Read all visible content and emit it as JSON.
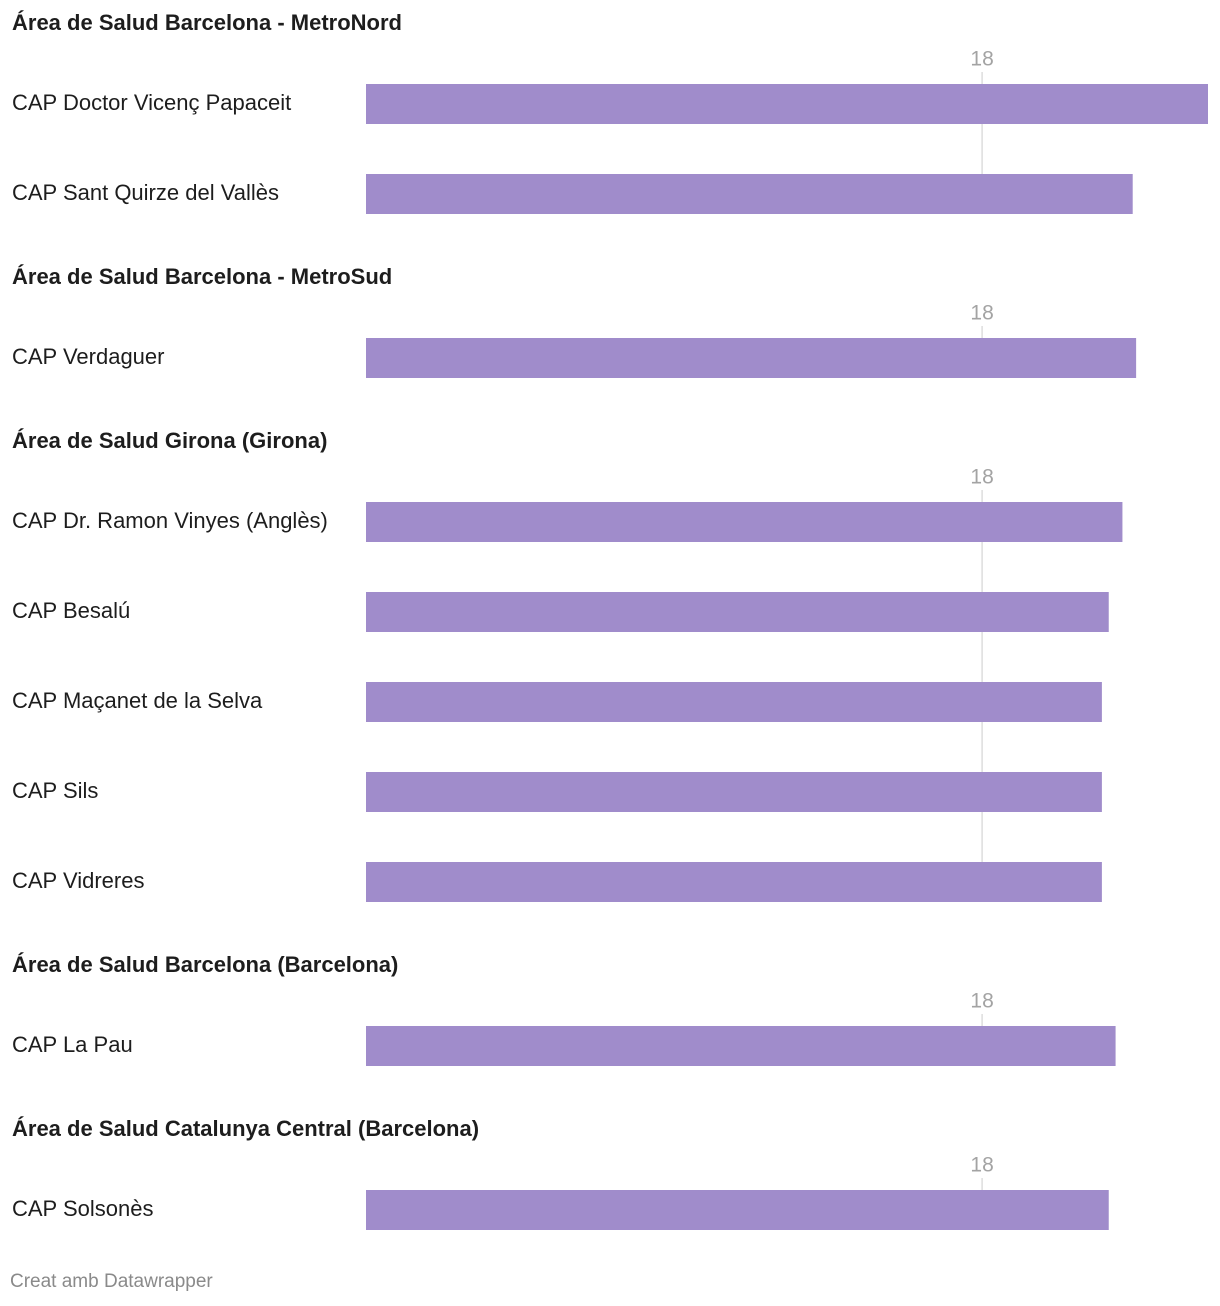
{
  "chart_data": [
    {
      "type": "bar",
      "title": "Área de Salud Barcelona - MetroNord",
      "categories": [
        "CAP Doctor Vicenç Papaceit",
        "CAP Sant Quirze del Vallès"
      ],
      "values": [
        24.6,
        22.4
      ],
      "color": "#a08ccb",
      "xlim": [
        0,
        24.6
      ],
      "xticks": [
        18
      ],
      "grid": true
    },
    {
      "type": "bar",
      "title": "Área de Salud Barcelona - MetroSud",
      "categories": [
        "CAP Verdaguer"
      ],
      "values": [
        22.5
      ],
      "color": "#a08ccb",
      "xlim": [
        0,
        24.6
      ],
      "xticks": [
        18
      ],
      "grid": true
    },
    {
      "type": "bar",
      "title": "Área de Salud Girona (Girona)",
      "categories": [
        "CAP Dr. Ramon Vinyes (Anglès)",
        "CAP Besalú",
        "CAP Maçanet de la Selva",
        "CAP Sils",
        "CAP Vidreres"
      ],
      "values": [
        22.1,
        21.7,
        21.5,
        21.5,
        21.5
      ],
      "color": "#a08ccb",
      "xlim": [
        0,
        24.6
      ],
      "xticks": [
        18
      ],
      "grid": true
    },
    {
      "type": "bar",
      "title": "Área de Salud Barcelona (Barcelona)",
      "categories": [
        "CAP La Pau"
      ],
      "values": [
        21.9
      ],
      "color": "#a08ccb",
      "xlim": [
        0,
        24.6
      ],
      "xticks": [
        18
      ],
      "grid": true
    },
    {
      "type": "bar",
      "title": "Área de Salud Catalunya Central (Barcelona)",
      "categories": [
        "CAP Solsonès"
      ],
      "values": [
        21.7
      ],
      "color": "#a08ccb",
      "xlim": [
        0,
        24.6
      ],
      "xticks": [
        18
      ],
      "grid": true
    }
  ],
  "credit": "Creat amb Datawrapper"
}
